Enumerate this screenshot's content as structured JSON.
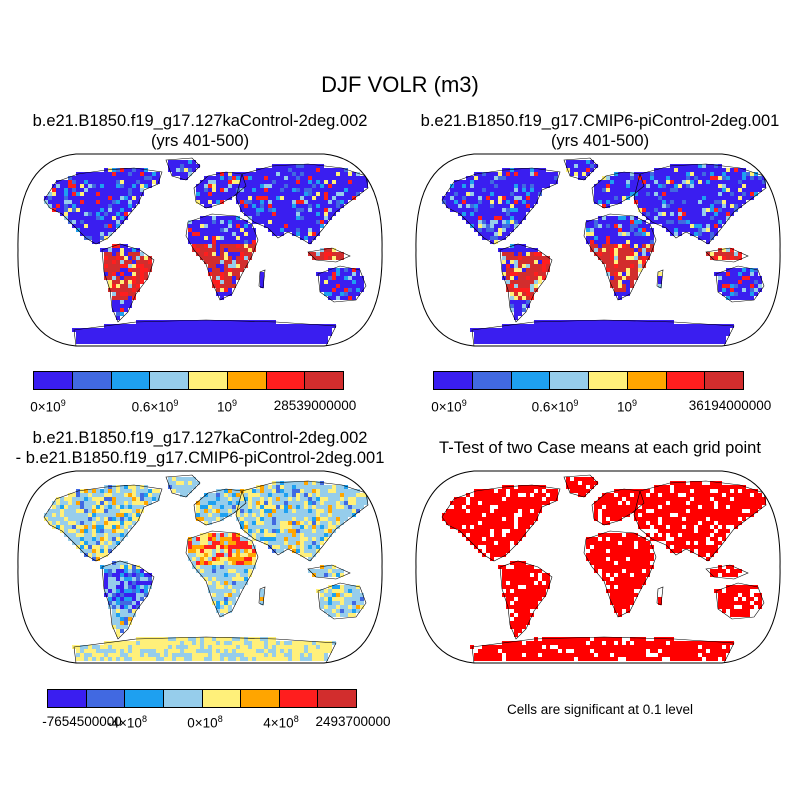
{
  "figure": {
    "title": "DJF VOLR (m3)"
  },
  "panels": [
    {
      "id": "case1",
      "title_line1": "b.e21.B1850.f19_g17.127kaControl-2deg.002",
      "title_line2": "(yrs 401-500)",
      "colorbar": {
        "colors": [
          "#3a1ef0",
          "#4169e1",
          "#1ea0f0",
          "#96cdeb",
          "#fff07a",
          "#ffa500",
          "#ff1e1e",
          "#d22d2d"
        ],
        "labels": [
          {
            "base": "0×10",
            "exp": "9"
          },
          {
            "base": "0.6×10",
            "exp": "9"
          },
          {
            "base": "10",
            "exp": "9"
          },
          {
            "base": "28539000000",
            "exp": ""
          }
        ]
      }
    },
    {
      "id": "case2",
      "title_line1": "b.e21.B1850.f19_g17.CMIP6-piControl-2deg.001",
      "title_line2": "(yrs 401-500)",
      "colorbar": {
        "colors": [
          "#3a1ef0",
          "#4169e1",
          "#1ea0f0",
          "#96cdeb",
          "#fff07a",
          "#ffa500",
          "#ff1e1e",
          "#d22d2d"
        ],
        "labels": [
          {
            "base": "0×10",
            "exp": "9"
          },
          {
            "base": "0.6×10",
            "exp": "9"
          },
          {
            "base": "10",
            "exp": "9"
          },
          {
            "base": "36194000000",
            "exp": ""
          }
        ]
      }
    },
    {
      "id": "difference",
      "title_line1": "b.e21.B1850.f19_g17.127kaControl-2deg.002",
      "title_line2": "- b.e21.B1850.f19_g17.CMIP6-piControl-2deg.001",
      "colorbar": {
        "colors": [
          "#3a1ef0",
          "#4169e1",
          "#1ea0f0",
          "#96cdeb",
          "#fff07a",
          "#ffa500",
          "#ff1e1e",
          "#d22d2d"
        ],
        "labels": [
          {
            "base": "-7654500000",
            "exp": ""
          },
          {
            "base": "-4×10",
            "exp": "8"
          },
          {
            "base": "0×10",
            "exp": "8"
          },
          {
            "base": "4×10",
            "exp": "8"
          },
          {
            "base": "2493700000",
            "exp": ""
          }
        ]
      }
    },
    {
      "id": "ttest",
      "title_line1": "T-Test of two Case means at each grid point",
      "note": "Cells are significant at 0.1 level",
      "fill_color": "#ff0000"
    }
  ]
}
